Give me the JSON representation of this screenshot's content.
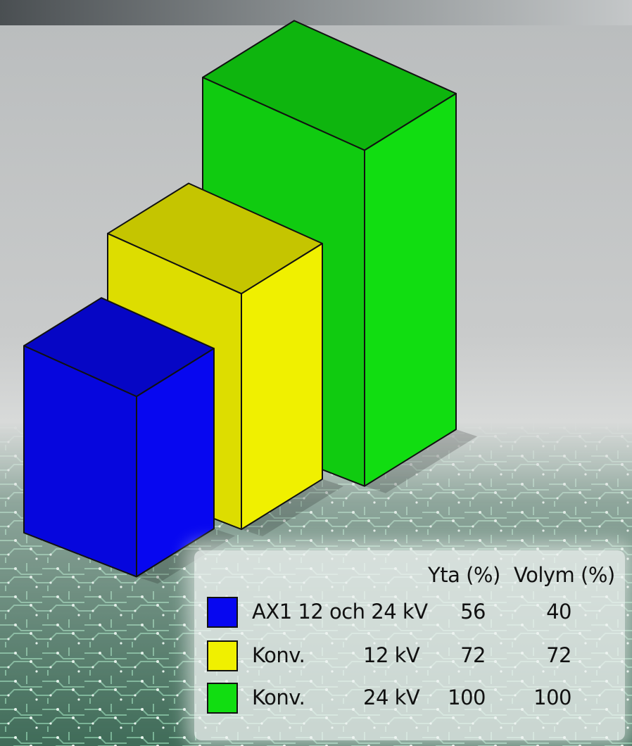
{
  "colors": {
    "blue": "#0707f0",
    "yellow": "#f0f000",
    "green": "#11dd11"
  },
  "chart_data": {
    "type": "bar",
    "title": "",
    "columns": [
      "Yta (%)",
      "Volym (%)"
    ],
    "series": [
      {
        "name": "AX1 12 och 24 kV",
        "label_a": "AX1 12 och 24 kV",
        "label_b": "",
        "color": "#0707f0",
        "yta": 56,
        "volym": 40
      },
      {
        "name": "Konv. 12 kV",
        "label_a": "Konv.",
        "label_b": "12 kV",
        "color": "#f0f000",
        "yta": 72,
        "volym": 72
      },
      {
        "name": "Konv. 24 kV",
        "label_a": "Konv.",
        "label_b": "24 kV",
        "color": "#11dd11",
        "yta": 100,
        "volym": 100
      }
    ]
  },
  "legend": {
    "header_yta": "Yta (%)",
    "header_volym": "Volym (%)",
    "rows": [
      {
        "label_a": "AX1 12 och 24 kV",
        "label_b": "",
        "yta": "56",
        "volym": "40"
      },
      {
        "label_a": "Konv.",
        "label_b": "12 kV",
        "yta": "72",
        "volym": "72"
      },
      {
        "label_a": "Konv.",
        "label_b": "24 kV",
        "yta": "100",
        "volym": "100"
      }
    ]
  }
}
